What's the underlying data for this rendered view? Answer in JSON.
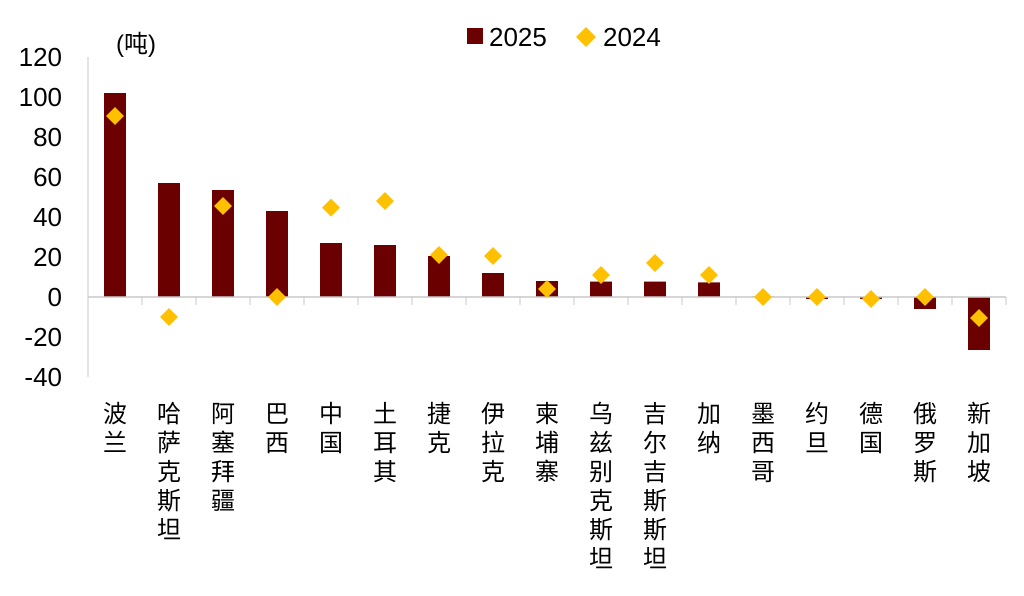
{
  "chart_data": {
    "type": "bar",
    "unit_label": "(吨)",
    "categories": [
      "波兰",
      "哈萨克斯坦",
      "阿塞拜疆",
      "巴西",
      "中国",
      "土耳其",
      "捷克",
      "伊拉克",
      "柬埔寨",
      "乌兹别克斯坦",
      "吉尔吉斯斯坦",
      "加纳",
      "墨西哥",
      "约旦",
      "德国",
      "俄罗斯",
      "新加坡"
    ],
    "series": [
      {
        "name": "2025",
        "type": "bar",
        "color": "#6B0000",
        "values": [
          102,
          57,
          53.5,
          43,
          27,
          26,
          20.5,
          12,
          8,
          7.7,
          7.7,
          7.3,
          0.3,
          -1,
          -1,
          -6,
          -26.5
        ]
      },
      {
        "name": "2024",
        "type": "scatter",
        "marker": "diamond",
        "color": "#FFC000",
        "values": [
          90.5,
          -10,
          45.5,
          0,
          44.7,
          48,
          21,
          20.5,
          4,
          11,
          17,
          11,
          0,
          0,
          -1,
          0,
          -10.5
        ]
      }
    ],
    "ylim": [
      -40,
      120
    ],
    "yticks": [
      -40,
      -20,
      0,
      20,
      40,
      60,
      80,
      100,
      120
    ],
    "grid": false,
    "legend_position": "top-center"
  }
}
